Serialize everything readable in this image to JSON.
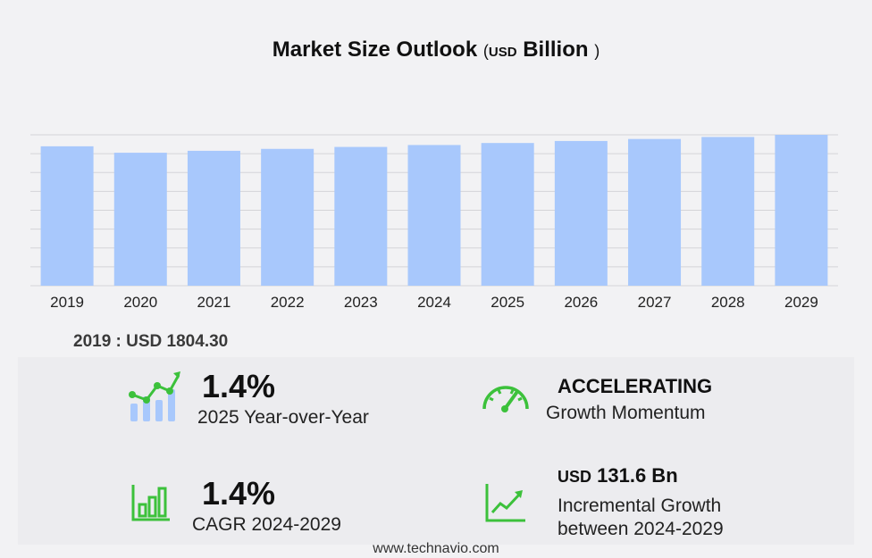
{
  "title": {
    "main": "Market Size Outlook",
    "paren_open": "(",
    "unit": "USD",
    "scale": "Billion",
    "paren_close": ")"
  },
  "chart_data": {
    "type": "bar",
    "categories": [
      "2019",
      "2020",
      "2021",
      "2022",
      "2023",
      "2024",
      "2025",
      "2026",
      "2027",
      "2028",
      "2029"
    ],
    "values": [
      1804.3,
      1721,
      1746,
      1771,
      1796,
      1821,
      1847,
      1873,
      1899,
      1925,
      1953
    ],
    "ylim": [
      0,
      2000
    ],
    "grid": true,
    "bar_color": "#a8c8fc",
    "grid_color": "#d4d4d8"
  },
  "first_year_label": "2019 : USD  1804.30",
  "kpis": {
    "yoy": {
      "value": "1.4%",
      "label": "2025 Year-over-Year",
      "icon": "growth-chart-icon"
    },
    "momentum": {
      "value": "ACCELERATING",
      "label": "Growth Momentum",
      "icon": "speedometer-icon"
    },
    "cagr": {
      "value": "1.4%",
      "label": "CAGR 2024-2029",
      "icon": "bar-chart-icon"
    },
    "incremental": {
      "unit": "USD",
      "value": "131.6 Bn",
      "label_line1": "Incremental Growth",
      "label_line2": "between 2024-2029",
      "icon": "trend-line-icon"
    }
  },
  "footer": "www.technavio.com",
  "colors": {
    "accent_green": "#3cc13b",
    "bar": "#a8c8fc"
  }
}
